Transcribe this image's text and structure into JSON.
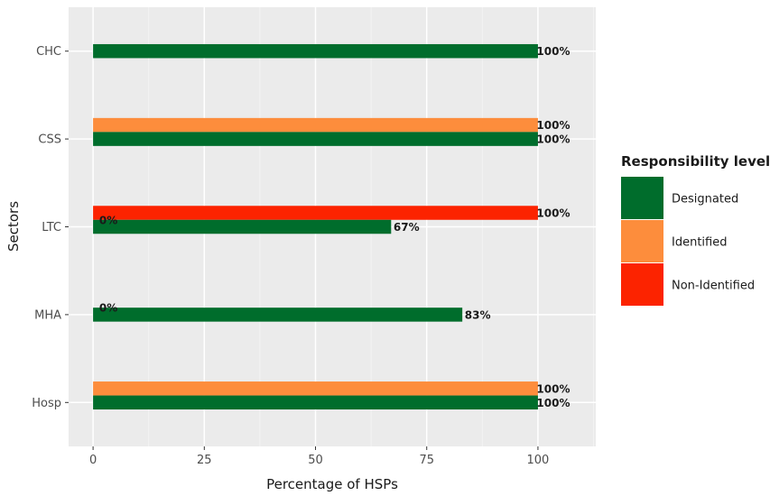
{
  "chart_data": {
    "type": "bar",
    "orientation": "horizontal",
    "title": "",
    "xlabel": "Percentage of HSPs",
    "ylabel": "Sectors",
    "xlim": [
      -5.5,
      113
    ],
    "x_ticks": [
      0,
      25,
      50,
      75,
      100
    ],
    "categories": [
      "CHC",
      "CSS",
      "LTC",
      "MHA",
      "Hosp"
    ],
    "grid": true,
    "legend": {
      "title": "Responsibility level",
      "position": "right",
      "entries": [
        {
          "name": "Designated",
          "color": "#006d2c"
        },
        {
          "name": "Identified",
          "color": "#fd8d3c"
        },
        {
          "name": "Non-Identified",
          "color": "#fc2300"
        }
      ]
    },
    "bars": [
      {
        "category": "CHC",
        "series": "Designated",
        "value": 100,
        "slot": 0,
        "label": "100%"
      },
      {
        "category": "CSS",
        "series": "Identified",
        "value": 100,
        "slot": 1,
        "label": "100%"
      },
      {
        "category": "CSS",
        "series": "Designated",
        "value": 100,
        "slot": 0,
        "label": "100%"
      },
      {
        "category": "LTC",
        "series": "Non-Identified",
        "value": 100,
        "slot": 1,
        "label": "100%"
      },
      {
        "category": "LTC",
        "series": "Identified",
        "value": 0,
        "slot": 0.5,
        "label": "0%"
      },
      {
        "category": "LTC",
        "series": "Designated",
        "value": 67,
        "slot": 0,
        "label": "67%"
      },
      {
        "category": "MHA",
        "series": "Identified",
        "value": 0,
        "slot": 0.5,
        "label": "0%"
      },
      {
        "category": "MHA",
        "series": "Designated",
        "value": 83,
        "slot": 0,
        "label": "83%"
      },
      {
        "category": "Hosp",
        "series": "Identified",
        "value": 100,
        "slot": 1,
        "label": "100%"
      },
      {
        "category": "Hosp",
        "series": "Designated",
        "value": 100,
        "slot": 0,
        "label": "100%"
      }
    ]
  }
}
